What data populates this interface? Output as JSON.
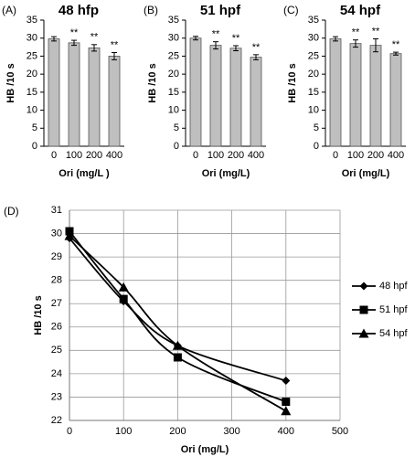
{
  "chart_data": [
    {
      "type": "bar",
      "panel_label": "(A)",
      "title": "48 hfp",
      "x_label": "Ori (mg/L )",
      "y_label": "HB /10 s",
      "categories": [
        "0",
        "100",
        "200",
        "400"
      ],
      "values": [
        29.8,
        28.7,
        27.3,
        25.0
      ],
      "errors": [
        0.6,
        0.7,
        0.9,
        1.0
      ],
      "annotations": [
        null,
        "**",
        "**",
        "**"
      ],
      "color": "#bfbfbf",
      "ylim": [
        0,
        35
      ],
      "yticks": [
        0,
        5,
        10,
        15,
        20,
        25,
        30,
        35
      ]
    },
    {
      "type": "bar",
      "panel_label": "(B)",
      "title": "51 hpf",
      "x_label": "Ori (mg/L)",
      "y_label": "HB /10 s",
      "categories": [
        "0",
        "100",
        "200",
        "400"
      ],
      "values": [
        30.0,
        28.0,
        27.2,
        24.7
      ],
      "errors": [
        0.5,
        1.0,
        0.7,
        0.7
      ],
      "annotations": [
        null,
        "**",
        "**",
        "**"
      ],
      "color": "#bfbfbf",
      "ylim": [
        0,
        35
      ],
      "yticks": [
        0,
        5,
        10,
        15,
        20,
        25,
        30,
        35
      ]
    },
    {
      "type": "bar",
      "panel_label": "(C)",
      "title": "54 hpf",
      "x_label": "Ori (mg/L)",
      "y_label": "HB /10 s",
      "categories": [
        "0",
        "100",
        "200",
        "400"
      ],
      "values": [
        29.8,
        28.5,
        28.0,
        25.7
      ],
      "errors": [
        0.6,
        1.0,
        1.8,
        0.4
      ],
      "annotations": [
        null,
        "**",
        "**",
        "**"
      ],
      "color": "#bfbfbf",
      "ylim": [
        0,
        35
      ],
      "yticks": [
        0,
        5,
        10,
        15,
        20,
        25,
        30,
        35
      ]
    },
    {
      "type": "line",
      "panel_label": "(D)",
      "x_label": "Ori (mg/L)",
      "y_label": "HB /10 s",
      "smooth": true,
      "grid": true,
      "legend": "right",
      "x": [
        0,
        100,
        200,
        400
      ],
      "series": [
        {
          "name": "48 hpf",
          "color": "#000000",
          "marker": "diamond",
          "values": [
            29.8,
            27.1,
            25.2,
            23.7
          ]
        },
        {
          "name": "51 hpf",
          "color": "#000000",
          "marker": "square",
          "values": [
            30.1,
            27.2,
            24.7,
            22.8
          ]
        },
        {
          "name": "54 hpf",
          "color": "#000000",
          "marker": "triangle",
          "values": [
            29.9,
            27.7,
            25.2,
            22.4
          ]
        }
      ],
      "xlim": [
        0,
        500
      ],
      "xticks": [
        0,
        100,
        200,
        300,
        400,
        500
      ],
      "ylim": [
        22,
        31
      ],
      "yticks": [
        22,
        23,
        24,
        25,
        26,
        27,
        28,
        29,
        30,
        31
      ]
    }
  ]
}
